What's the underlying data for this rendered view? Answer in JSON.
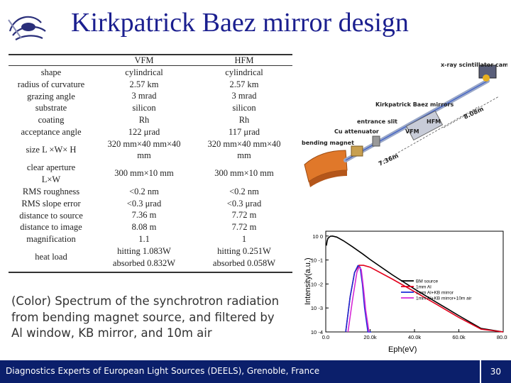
{
  "title": "Kirkpatrick Baez mirror design",
  "table": {
    "param_labels": [
      "shape",
      "radius of curvature",
      "grazing angle",
      "substrate",
      "coating",
      "acceptance angle",
      "size L ×W× H",
      "clear aperture",
      "L×W",
      "RMS roughness",
      "RMS slope error",
      "distance to source",
      "distance to image",
      "magnification",
      "heat load"
    ],
    "vfm": {
      "header": "VFM",
      "values": [
        "cylindrical",
        "2.57 km",
        "3 mrad",
        "silicon",
        "Rh",
        "122 μrad",
        "320 mm×40 mm×40 mm",
        "300 mm×10 mm",
        "<0.2 nm",
        "<0.3 μrad",
        "7.36 m",
        "8.08 m",
        "1.1",
        "hitting 1.083W",
        "absorbed 0.832W"
      ]
    },
    "hfm": {
      "header": "HFM",
      "values": [
        "cylindrical",
        "2.57 km",
        "3 mrad",
        "silicon",
        "Rh",
        "117 μrad",
        "320 mm×40 mm×40 mm",
        "300 mm×10 mm",
        "<0.2 nm",
        "<0.3 μrad",
        "7.72 m",
        "7.72 m",
        "1",
        "hitting 0.251W",
        "absorbed 0.058W"
      ]
    }
  },
  "beamline": {
    "scintillator_label": "x-ray scintillator camera",
    "kb_label": "Kirkpatrick Baez mirrors",
    "hfm_label": "HFM",
    "vfm_label": "VFM",
    "entrance_slit_label": "entrance slit",
    "attenuator_label": "Cu attenuator",
    "bending_magnet_label": "bending magnet",
    "dist1_label": "8.08m",
    "dist2_label": "7.36m"
  },
  "caption": "(Color) Spectrum of the synchrotron radiation from bending magnet source, and filtered by Al window, KB mirror, and 10m air",
  "chart_data": {
    "type": "line",
    "xlabel": "Eph(eV)",
    "ylabel": "Intensity(a.u.)",
    "x_ticks": [
      "0.0",
      "20.0k",
      "40.0k",
      "60.0k",
      "80.0k"
    ],
    "y_ticks": [
      "10^0",
      "10^-1",
      "10^-2",
      "10^-3",
      "10^-4"
    ],
    "xlim": [
      0,
      80000
    ],
    "ylim_log10": [
      -4,
      0.2
    ],
    "series": [
      {
        "name": "BM source",
        "color": "#000000",
        "x": [
          300,
          600,
          1000,
          2000,
          3000,
          5000,
          8000,
          12000,
          17000,
          20000,
          30000,
          40000,
          50000,
          60000,
          70000,
          80000
        ],
        "y": [
          0.4,
          0.62,
          0.8,
          0.98,
          1.0,
          0.9,
          0.63,
          0.36,
          0.17,
          0.105,
          0.024,
          0.0062,
          0.0017,
          0.00048,
          0.00014,
          4e-05
        ]
      },
      {
        "name": "1mm Al",
        "color": "#e3001b",
        "x": [
          9000,
          11000,
          13000,
          15000,
          17000,
          20000,
          30000,
          40000,
          50000,
          60000,
          70000,
          80000
        ],
        "y": [
          0.0001,
          0.003,
          0.03,
          0.06,
          0.06,
          0.05,
          0.016,
          0.0048,
          0.0014,
          0.0004,
          0.00013,
          4e-05
        ]
      },
      {
        "name": "1mm Al+KB mirror",
        "color": "#1a2bd8",
        "x": [
          9000,
          11000,
          13000,
          14500,
          15500,
          16500,
          17500,
          19000,
          20500
        ],
        "y": [
          0.0001,
          0.003,
          0.03,
          0.058,
          0.05,
          0.01,
          0.001,
          0.0001,
          0.0001
        ]
      },
      {
        "name": "1mm Al+KB mirror+10m air",
        "color": "#d62ad6",
        "x": [
          10000,
          12000,
          14000,
          15000,
          16000,
          17000,
          18000,
          19500
        ],
        "y": [
          0.0001,
          0.002,
          0.03,
          0.05,
          0.04,
          0.007,
          0.0008,
          0.0001
        ]
      }
    ]
  },
  "footer": {
    "text": "Diagnostics Experts of European Light Sources (DEELS), Grenoble, France",
    "page": "30"
  }
}
